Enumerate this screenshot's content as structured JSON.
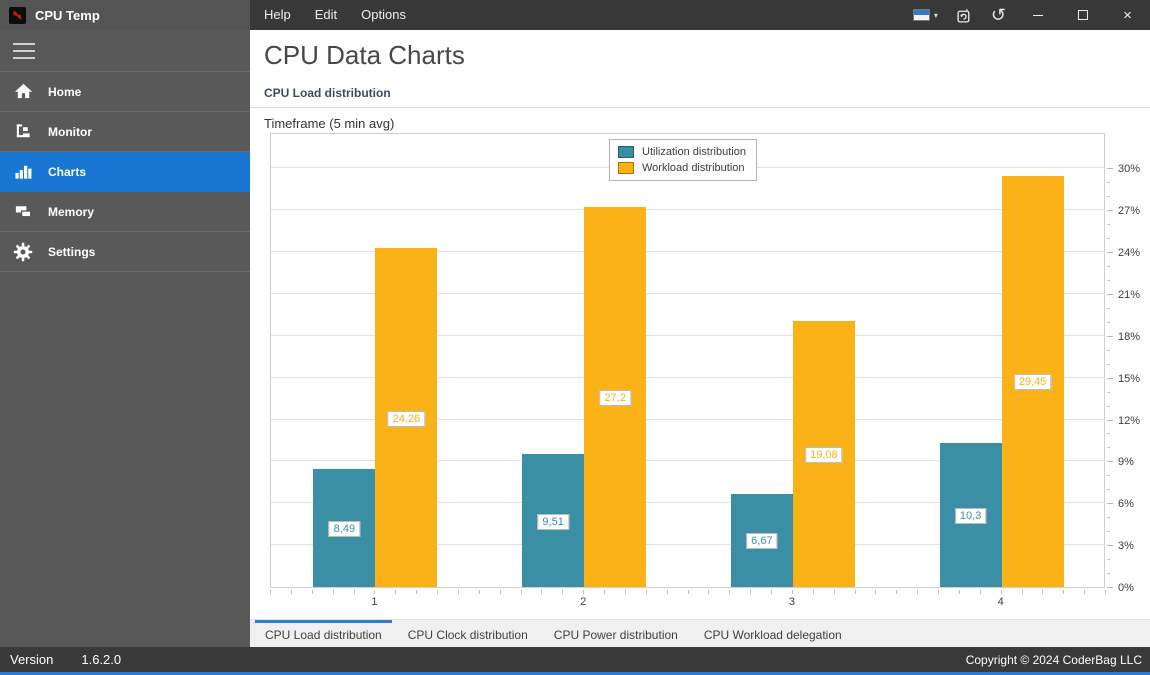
{
  "app": {
    "name": "CPU Temp"
  },
  "titlebar": {
    "menu": [
      "Help",
      "Edit",
      "Options"
    ],
    "icons": [
      "language-flag",
      "refresh-window",
      "undo",
      "minimize",
      "maximize",
      "close"
    ],
    "glyphs": {
      "caret": "▾",
      "undo": "↺",
      "close": "×"
    }
  },
  "sidebar": {
    "items": [
      {
        "label": "Home",
        "icon": "home-icon",
        "active": false
      },
      {
        "label": "Monitor",
        "icon": "monitor-tree-icon",
        "active": false
      },
      {
        "label": "Charts",
        "icon": "bar-chart-icon",
        "active": true
      },
      {
        "label": "Memory",
        "icon": "memory-icon",
        "active": false
      },
      {
        "label": "Settings",
        "icon": "gear-icon",
        "active": false
      }
    ]
  },
  "main": {
    "title": "CPU Data Charts",
    "section_title": "CPU Load distribution",
    "chart_caption": "Timeframe (5 min avg)",
    "tabs": [
      {
        "label": "CPU Load distribution",
        "active": true
      },
      {
        "label": "CPU Clock distribution",
        "active": false
      },
      {
        "label": "CPU Power distribution",
        "active": false
      },
      {
        "label": "CPU Workload delegation",
        "active": false
      }
    ]
  },
  "chart_data": {
    "type": "bar",
    "title": "Timeframe (5 min avg)",
    "categories": [
      "1",
      "2",
      "3",
      "4"
    ],
    "series": [
      {
        "name": "Utilization distribution",
        "color": "#3a8fa4",
        "values": [
          8.49,
          9.51,
          6.67,
          10.3
        ],
        "value_labels": [
          "8,49",
          "9,51",
          "6,67",
          "10,3"
        ]
      },
      {
        "name": "Workload distribution",
        "color": "#fbb216",
        "values": [
          24.26,
          27.2,
          19.08,
          29.45
        ],
        "value_labels": [
          "24,26",
          "27,2",
          "19,08",
          "29,45"
        ]
      }
    ],
    "xlabel": "",
    "ylabel": "",
    "ylim": [
      0,
      32.6
    ],
    "ytick_step": 3,
    "ytick_max": 30,
    "ytick_suffix": "%",
    "grid": true,
    "legend_position": "top-center"
  },
  "colors": {
    "accent_blue": "#1976d2",
    "utilization_teal": "#3a8fa4",
    "workload_orange": "#fbb216"
  },
  "footer": {
    "version_label": "Version",
    "version": "1.6.2.0",
    "copyright": "Copyright © 2024 CoderBag LLC"
  }
}
